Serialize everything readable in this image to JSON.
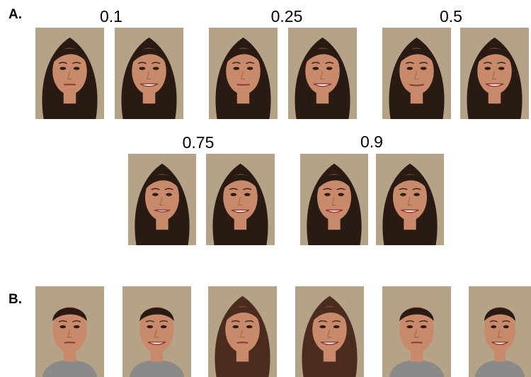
{
  "panel_a": {
    "label": "A.",
    "levels": [
      "0.1",
      "0.25",
      "0.5",
      "0.75",
      "0.9"
    ]
  },
  "panel_b": {
    "label": "B."
  },
  "colors": {
    "background": "#b5a388",
    "skin": "#c98a6c",
    "hair_dark": "#2a1a14",
    "hair_brown": "#4a2c1e",
    "shirt": "#8a8a88"
  }
}
